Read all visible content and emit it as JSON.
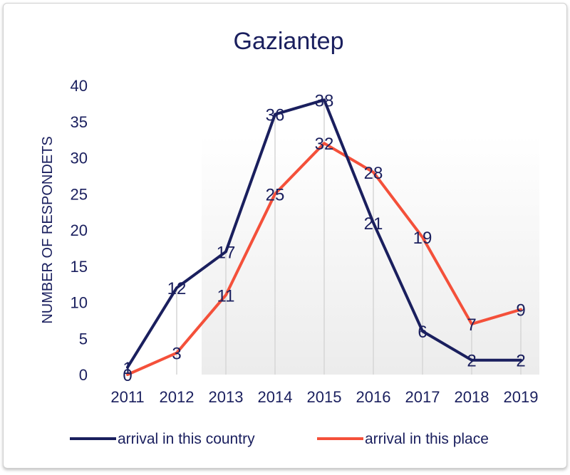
{
  "chart_data": {
    "type": "line",
    "title": "Gaziantep",
    "xlabel": "",
    "ylabel": "NUMBER OF RESPONDETS",
    "categories": [
      "2011",
      "2012",
      "2013",
      "2014",
      "2015",
      "2016",
      "2017",
      "2018",
      "2019"
    ],
    "ylim": [
      0,
      40
    ],
    "yticks": [
      0,
      5,
      10,
      15,
      20,
      25,
      30,
      35,
      40
    ],
    "series": [
      {
        "name": "arrival in this country",
        "color": "#1a1f5e",
        "values": [
          1,
          12,
          17,
          36,
          38,
          21,
          6,
          2,
          2
        ]
      },
      {
        "name": "arrival in this place",
        "color": "#f4503a",
        "values": [
          0,
          3,
          11,
          25,
          32,
          28,
          19,
          7,
          9
        ]
      }
    ],
    "grid": "vertical drop lines",
    "legend": "bottom"
  }
}
